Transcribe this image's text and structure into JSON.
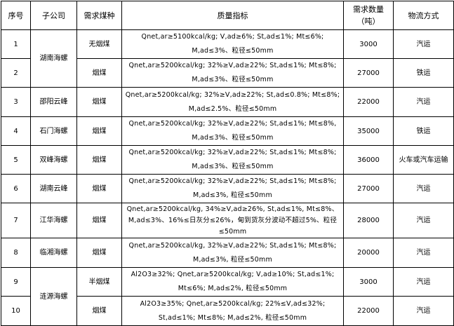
{
  "headers": [
    "序号",
    "子公司",
    "需求煤种",
    "质量指标",
    "需求数量（吨）",
    "物流方式"
  ],
  "rows": [
    {
      "no": "1",
      "company": "湖南海螺",
      "coal": "无烟煤",
      "quality": "Qnet,ar≥5100kcal/kg; V,ad≥6%; St,ad≤1%; Mt≤6%; M,ad≤3%、粒径≤50mm",
      "qty": "3000",
      "logistics": "汽运"
    },
    {
      "no": "2",
      "company": "",
      "coal": "烟煤",
      "quality": "Qnet,ar≥5200kcal/kg; 32%≥V,ad≥22%; St,ad≤1%; Mt≤8%; M,ad≤3%、粒径≤50mm",
      "qty": "27000",
      "logistics": "铁运"
    },
    {
      "no": "3",
      "company": "邵阳云峰",
      "coal": "烟煤",
      "quality": "Qnet,ar≥5200kcal/kg; 32%≥V,ad≥22%; St,ad≤0.8%; Mt≤8%; M,ad≤2.5%、粒径≤50mm",
      "qty": "22000",
      "logistics": "汽运"
    },
    {
      "no": "4",
      "company": "石门海螺",
      "coal": "烟煤",
      "quality": "Qnet,ar≥5200kcal/kg; 32%≥V,ad≥22%; St,ad≤1%; Mt≤8%, M,ad≤3%、粒径≤50mm",
      "qty": "35000",
      "logistics": "铁运"
    },
    {
      "no": "5",
      "company": "双峰海螺",
      "coal": "烟煤",
      "quality": "Qnet,ar≥5200kcal/kg; 32%≥V,ad≥22%; St,ad≤1%; Mt≤8%; M,ad≤3%、粒径≤50mm",
      "qty": "36000",
      "logistics": "火车或汽车运输"
    },
    {
      "no": "6",
      "company": "湖南云峰",
      "coal": "烟煤",
      "quality": "Qnet,ar≥5200kcal/kg; 32%≥V,ad≥22%; St,ad≤1%; Mt≤8%; M,ad≤3%, 粒径≤50mm",
      "qty": "27000",
      "logistics": "汽运"
    },
    {
      "no": "7",
      "company": "江华海螺",
      "coal": "烟煤",
      "quality": "Qnet,ar≥5200kcal/kg, 34%≥V,ad≥26%, St,ad≤1%, Mt≤8%、M,ad≤3%、16%≤日灰分≤26%，甸到货灰分波动不超过5%、粒径≤50mm",
      "qty": "28000",
      "logistics": "汽运"
    },
    {
      "no": "8",
      "company": "临湘海螺",
      "coal": "烟煤",
      "quality": "Qnet,ar≥5200kcal/kg, 32%≥V,ad≥22%; St,ad≤1%; Mt≤8%; M,ad≤3%, 粒径≤50mm",
      "qty": "20000",
      "logistics": "汽运"
    },
    {
      "no": "9",
      "company": "涟源海螺",
      "coal": "半烟煤",
      "quality": "Al2O3≥32%; Qnet,ar≥5200kcal/kg; V,ad≥10%; St,ad≤1%; Mt≤6%; M,ad≤2%, 粒径≤50mm",
      "qty": "3000",
      "logistics": "汽运"
    },
    {
      "no": "10",
      "company": "",
      "coal": "烟煤",
      "quality": "Al2O3≥35%; Qnet,ar≥5200kcal/kg; 22%≤V,ad≤32%; St,ad≤1%; Mt≤8%; M,ad≤2%, 粒径≤50mm",
      "qty": "22000",
      "logistics": "汽运"
    }
  ]
}
